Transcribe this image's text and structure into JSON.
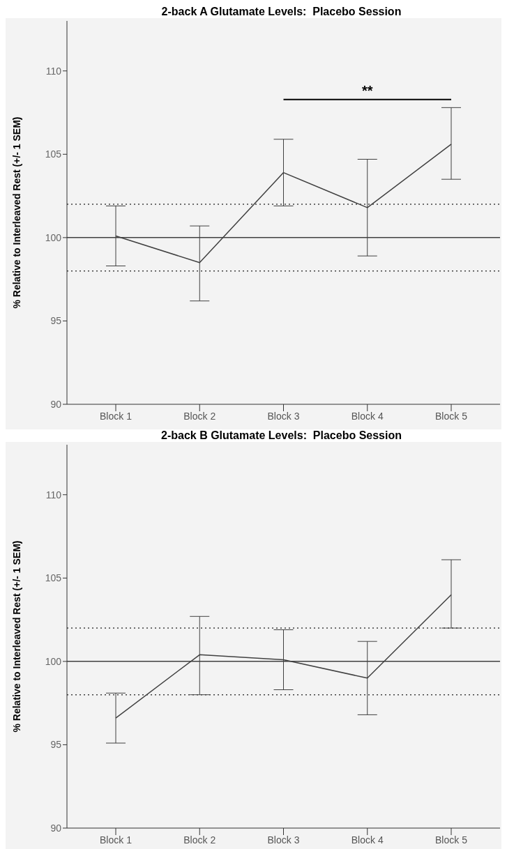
{
  "chart_data": [
    {
      "type": "line",
      "title": "2-back A Glutamate Levels:  Placebo Session",
      "ylabel": "% Relative to Interleaved Rest (+/- 1 SEM)",
      "categories": [
        "Block 1",
        "Block 2",
        "Block 3",
        "Block 4",
        "Block 5"
      ],
      "series": [
        {
          "color": "#404040",
          "values": [
            100.1,
            98.5,
            103.9,
            101.8,
            105.6
          ],
          "errors": [
            [
              98.3,
              101.9
            ],
            [
              96.2,
              100.7
            ],
            [
              101.9,
              105.9
            ],
            [
              98.9,
              104.7
            ],
            [
              103.5,
              107.8
            ]
          ]
        }
      ],
      "ylim": [
        90,
        113
      ],
      "yticks": [
        90,
        95,
        100,
        105,
        110
      ],
      "grid": false,
      "legend": false,
      "marker": "none",
      "line_style": "solid",
      "ref_lines": [
        {
          "axis": "y",
          "value": 100,
          "color": "#404040",
          "line_style": "solid"
        },
        {
          "axis": "y",
          "value": 98,
          "color": "#404040",
          "line_style": "dotted"
        },
        {
          "axis": "y",
          "value": 102,
          "color": "#404040",
          "line_style": "dotted"
        }
      ],
      "annotations": [
        "**"
      ]
    },
    {
      "type": "line",
      "title": "2-back B Glutamate Levels:  Placebo Session",
      "ylabel": "% Relative to Interleaved Rest (+/- 1 SEM)",
      "categories": [
        "Block 1",
        "Block 2",
        "Block 3",
        "Block 4",
        "Block 5"
      ],
      "series": [
        {
          "color": "#404040",
          "values": [
            96.6,
            100.4,
            100.1,
            99.0,
            104.0
          ],
          "errors": [
            [
              95.1,
              98.1
            ],
            [
              98.0,
              102.7
            ],
            [
              98.3,
              101.9
            ],
            [
              96.8,
              101.2
            ],
            [
              102.0,
              106.1
            ]
          ]
        }
      ],
      "ylim": [
        90,
        113
      ],
      "yticks": [
        90,
        95,
        100,
        105,
        110
      ],
      "grid": false,
      "legend": false,
      "marker": "none",
      "line_style": "solid",
      "ref_lines": [
        {
          "axis": "y",
          "value": 100,
          "color": "#404040",
          "line_style": "solid"
        },
        {
          "axis": "y",
          "value": 98,
          "color": "#404040",
          "line_style": "dotted"
        },
        {
          "axis": "y",
          "value": 102,
          "color": "#404040",
          "line_style": "dotted"
        }
      ]
    }
  ]
}
